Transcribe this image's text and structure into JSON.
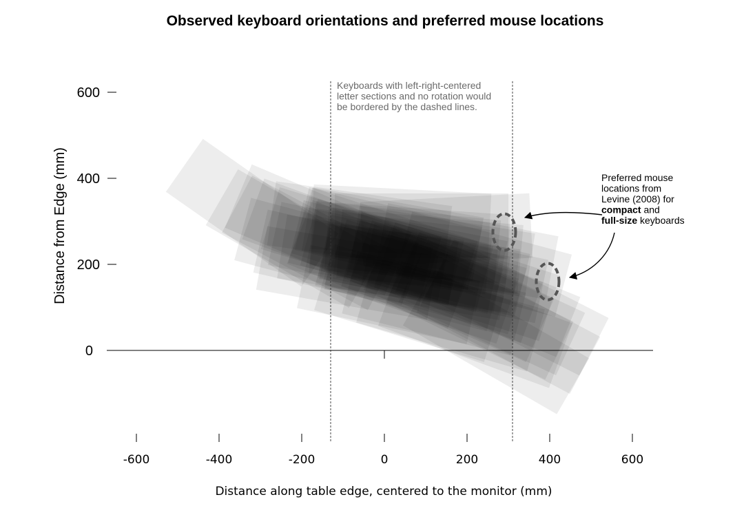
{
  "chart_data": {
    "type": "density",
    "title": "Observed keyboard orientations and preferred mouse locations",
    "xlabel": "Distance along table edge, centered to the monitor (mm)",
    "ylabel": "Distance from Edge (mm)",
    "xlim": [
      -600,
      650
    ],
    "ylim": [
      -180,
      600
    ],
    "xticks": [
      "-600",
      "-400",
      "-200",
      "0",
      "200",
      "400",
      "600"
    ],
    "xtick_values": [
      -600,
      -400,
      -200,
      0,
      200,
      400,
      600
    ],
    "yticks": [
      "600",
      "400",
      "200",
      "0"
    ],
    "ytick_values": [
      600,
      400,
      200,
      0
    ],
    "grid": false,
    "reference_lines": {
      "style": "dashed vertical",
      "x": [
        -130,
        310
      ],
      "note": [
        "Keyboards with left-right-centered",
        "letter sections and no rotation would",
        "be bordered by the dashed lines."
      ]
    },
    "mouse_annotation": {
      "lines": [
        [
          {
            "text": "Preferred mouse",
            "bold": false
          }
        ],
        [
          {
            "text": "locations from",
            "bold": false
          }
        ],
        [
          {
            "text": "Levine (2008) for",
            "bold": false
          }
        ],
        [
          {
            "text": "compact",
            "bold": true
          },
          {
            "text": " and",
            "bold": false
          }
        ],
        [
          {
            "text": "full-size",
            "bold": true
          },
          {
            "text": " keyboards",
            "bold": false
          }
        ]
      ],
      "locations": [
        {
          "keyboard": "compact",
          "x": 290,
          "y": 275,
          "width": 55,
          "height": 85
        },
        {
          "keyboard": "full-size",
          "x": 395,
          "y": 160,
          "width": 55,
          "height": 85
        }
      ]
    },
    "keyboards": [
      {
        "x": 60,
        "y": 200,
        "w": 420,
        "h": 150,
        "angle": 12
      },
      {
        "x": 30,
        "y": 220,
        "w": 440,
        "h": 160,
        "angle": 15
      },
      {
        "x": 80,
        "y": 180,
        "w": 430,
        "h": 150,
        "angle": 10
      },
      {
        "x": 0,
        "y": 240,
        "w": 420,
        "h": 160,
        "angle": 18
      },
      {
        "x": 100,
        "y": 190,
        "w": 440,
        "h": 150,
        "angle": 8
      },
      {
        "x": -20,
        "y": 230,
        "w": 400,
        "h": 150,
        "angle": 14
      },
      {
        "x": 120,
        "y": 170,
        "w": 420,
        "h": 160,
        "angle": 16
      },
      {
        "x": 50,
        "y": 250,
        "w": 450,
        "h": 150,
        "angle": 6
      },
      {
        "x": -60,
        "y": 230,
        "w": 420,
        "h": 150,
        "angle": 12
      },
      {
        "x": 150,
        "y": 160,
        "w": 440,
        "h": 150,
        "angle": 20
      },
      {
        "x": 70,
        "y": 210,
        "w": 430,
        "h": 170,
        "angle": 11
      },
      {
        "x": -40,
        "y": 210,
        "w": 420,
        "h": 150,
        "angle": 9
      },
      {
        "x": 10,
        "y": 260,
        "w": 430,
        "h": 150,
        "angle": 13
      },
      {
        "x": 130,
        "y": 200,
        "w": 420,
        "h": 150,
        "angle": 14
      },
      {
        "x": 90,
        "y": 160,
        "w": 440,
        "h": 160,
        "angle": 19
      },
      {
        "x": 40,
        "y": 230,
        "w": 430,
        "h": 150,
        "angle": 7
      },
      {
        "x": -80,
        "y": 250,
        "w": 410,
        "h": 150,
        "angle": 17
      },
      {
        "x": 170,
        "y": 180,
        "w": 430,
        "h": 150,
        "angle": 12
      },
      {
        "x": 110,
        "y": 230,
        "w": 440,
        "h": 160,
        "angle": 5
      },
      {
        "x": -10,
        "y": 200,
        "w": 420,
        "h": 160,
        "angle": 22
      },
      {
        "x": 60,
        "y": 170,
        "w": 430,
        "h": 150,
        "angle": 15
      },
      {
        "x": 200,
        "y": 160,
        "w": 420,
        "h": 160,
        "angle": 18
      },
      {
        "x": 20,
        "y": 270,
        "w": 420,
        "h": 150,
        "angle": 10
      },
      {
        "x": 140,
        "y": 230,
        "w": 430,
        "h": 150,
        "angle": 9
      },
      {
        "x": -100,
        "y": 210,
        "w": 410,
        "h": 150,
        "angle": 13
      },
      {
        "x": 80,
        "y": 250,
        "w": 440,
        "h": 160,
        "angle": 4
      },
      {
        "x": 180,
        "y": 130,
        "w": 430,
        "h": 160,
        "angle": 24
      },
      {
        "x": 250,
        "y": 130,
        "w": 420,
        "h": 150,
        "angle": 22
      },
      {
        "x": 230,
        "y": 90,
        "w": 430,
        "h": 150,
        "angle": 26
      },
      {
        "x": 300,
        "y": 60,
        "w": 420,
        "h": 150,
        "angle": 28
      },
      {
        "x": 270,
        "y": 20,
        "w": 430,
        "h": 150,
        "angle": 30
      },
      {
        "x": 220,
        "y": 60,
        "w": 440,
        "h": 160,
        "angle": 20
      },
      {
        "x": 160,
        "y": 80,
        "w": 430,
        "h": 150,
        "angle": 16
      },
      {
        "x": 120,
        "y": 110,
        "w": 420,
        "h": 150,
        "angle": 14
      },
      {
        "x": -120,
        "y": 260,
        "w": 420,
        "h": 150,
        "angle": 20
      },
      {
        "x": -160,
        "y": 280,
        "w": 420,
        "h": 160,
        "angle": 23
      },
      {
        "x": -180,
        "y": 250,
        "w": 400,
        "h": 150,
        "angle": 28
      },
      {
        "x": -140,
        "y": 230,
        "w": 420,
        "h": 150,
        "angle": 15
      },
      {
        "x": -60,
        "y": 290,
        "w": 430,
        "h": 150,
        "angle": 8
      },
      {
        "x": 40,
        "y": 300,
        "w": 430,
        "h": 150,
        "angle": 3
      },
      {
        "x": 90,
        "y": 290,
        "w": 420,
        "h": 150,
        "angle": 0
      },
      {
        "x": 150,
        "y": 280,
        "w": 410,
        "h": 150,
        "angle": -3
      },
      {
        "x": 10,
        "y": 130,
        "w": 420,
        "h": 150,
        "angle": 12
      },
      {
        "x": 60,
        "y": 110,
        "w": 430,
        "h": 160,
        "angle": 17
      },
      {
        "x": 200,
        "y": 230,
        "w": 420,
        "h": 150,
        "angle": 11
      },
      {
        "x": 240,
        "y": 200,
        "w": 400,
        "h": 150,
        "angle": 15
      },
      {
        "x": -90,
        "y": 180,
        "w": 420,
        "h": 150,
        "angle": 10
      },
      {
        "x": 260,
        "y": 100,
        "w": 420,
        "h": 160,
        "angle": 25
      },
      {
        "x": 320,
        "y": 100,
        "w": 420,
        "h": 150,
        "angle": 27
      },
      {
        "x": -220,
        "y": 260,
        "w": 400,
        "h": 150,
        "angle": 30
      },
      {
        "x": -320,
        "y": 320,
        "w": 400,
        "h": 150,
        "angle": 35
      }
    ]
  }
}
